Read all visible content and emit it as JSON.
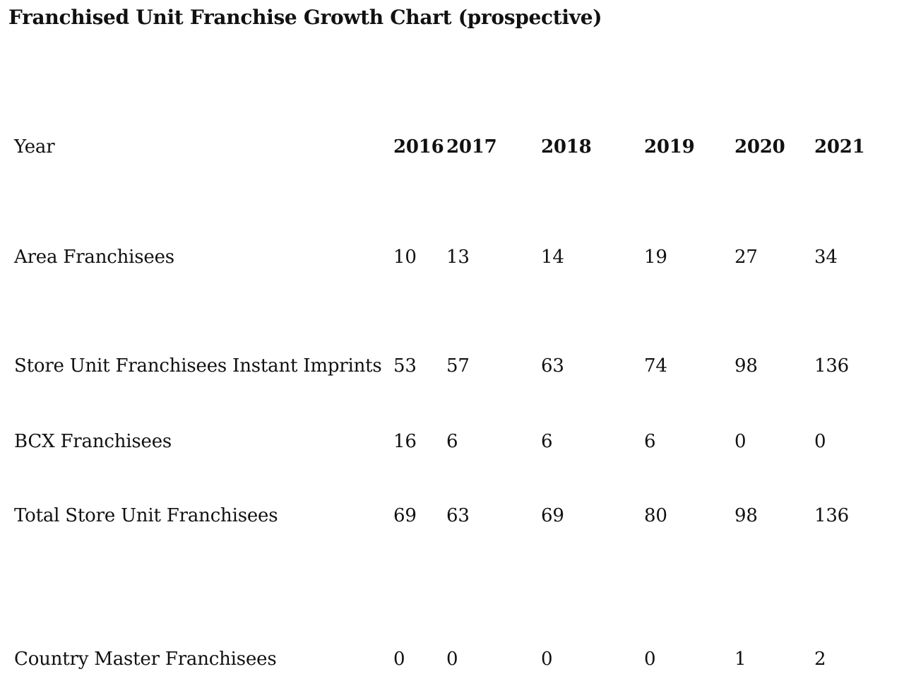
{
  "title": "Franchised Unit Franchise Growth Chart (prospective)",
  "colors": {
    "background": "#ffffff",
    "text": "#111111"
  },
  "chart_data": {
    "type": "table",
    "title": "Franchised Unit Franchise Growth Chart (prospective)",
    "header": {
      "label": "Year",
      "years": [
        "2016",
        "2017",
        "2018",
        "2019",
        "2020",
        "2021"
      ]
    },
    "rows": [
      {
        "label": "Area Franchisees",
        "values": [
          10,
          13,
          14,
          19,
          27,
          34
        ]
      },
      {
        "label": "Store Unit Franchisees Instant Imprints",
        "values": [
          53,
          57,
          63,
          74,
          98,
          136
        ]
      },
      {
        "label": "BCX Franchisees",
        "values": [
          16,
          6,
          6,
          6,
          0,
          0
        ]
      },
      {
        "label": "Total Store Unit Franchisees",
        "values": [
          69,
          63,
          69,
          80,
          98,
          136
        ]
      },
      {
        "label": "Country Master Franchisees",
        "values": [
          0,
          0,
          0,
          0,
          1,
          2
        ]
      }
    ],
    "layout": {
      "grid": "off",
      "value_alignment": "left",
      "header_style": "bold-years"
    }
  }
}
